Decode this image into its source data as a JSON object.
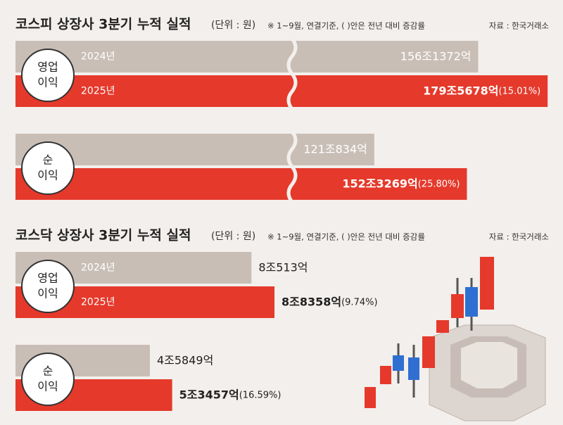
{
  "chart_data": [
    {
      "type": "bar",
      "title": "코스피 상장사 3분기 누적 실적",
      "unit": "(단위 : 원)",
      "note": "※ 1~9월, 연결기준, (  )안은 전년 대비 증감률",
      "source": "자료 : 한국거래소",
      "categories": [
        [
          "영업",
          "이익"
        ],
        [
          "순",
          "이익"
        ]
      ],
      "xlim": [
        0,
        1800000
      ],
      "label_position": "inside",
      "series": [
        {
          "name": "2024년",
          "color": "#c9beb6",
          "values": [
            1561372,
            1210834
          ],
          "value_labels": [
            "156조1372억",
            "121조834억"
          ]
        },
        {
          "name": "2025년",
          "color": "#e5392b",
          "values": [
            1795678,
            1523269
          ],
          "value_labels": [
            "179조5678억",
            "152조3269억"
          ],
          "changes": [
            15.01,
            25.8
          ],
          "change_labels": [
            "(15.01%)",
            "(25.80%)"
          ]
        }
      ]
    },
    {
      "type": "bar",
      "title": "코스닥 상장사 3분기 누적 실적",
      "unit": "(단위 : 원)",
      "note": "※ 1~9월, 연결기준, (  )안은 전년 대비 증감률",
      "source": "자료 : 한국거래소",
      "categories": [
        [
          "영업",
          "이익"
        ],
        [
          "순",
          "이익"
        ]
      ],
      "xlim": [
        0,
        182000
      ],
      "label_position": "outside",
      "series": [
        {
          "name": "2024년",
          "color": "#c9beb6",
          "values": [
            80513,
            45849
          ],
          "value_labels": [
            "8조513억",
            "4조5849억"
          ]
        },
        {
          "name": "2025년",
          "color": "#e5392b",
          "values": [
            88358,
            53457
          ],
          "value_labels": [
            "8조8358억",
            "5조3457억"
          ],
          "changes": [
            9.74,
            16.59
          ],
          "change_labels": [
            "(9.74%)",
            "(16.59%)"
          ]
        }
      ]
    }
  ]
}
